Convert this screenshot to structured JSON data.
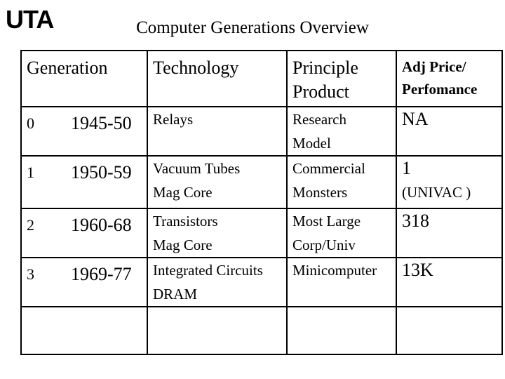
{
  "logo": "UTA",
  "title": "Computer Generations Overview",
  "headers": {
    "generation": "Generation",
    "technology": "Technology",
    "product_line1": "Principle",
    "product_line2": "Product",
    "price_line1": "Adj Price/",
    "price_line2": "Perfomance"
  },
  "rows": [
    {
      "gen": "0",
      "years": "1945-50",
      "tech1": "Relays",
      "tech2": "",
      "prod1": "Research",
      "prod2": "Model",
      "price1": "NA",
      "price2": ""
    },
    {
      "gen": "1",
      "years": "1950-59",
      "tech1": "Vacuum Tubes",
      "tech2": "Mag Core",
      "prod1": "Commercial",
      "prod2": "Monsters",
      "price1": "1",
      "price2": "(UNIVAC )"
    },
    {
      "gen": "2",
      "years": "1960-68",
      "tech1": "Transistors",
      "tech2": "Mag Core",
      "prod1": "Most Large",
      "prod2": "Corp/Univ",
      "price1": "318",
      "price2": ""
    },
    {
      "gen": "3",
      "years": "1969-77",
      "tech1": "Integrated Circuits",
      "tech2": "DRAM",
      "prod1": "Minicomputer",
      "prod2": "",
      "price1": "13K",
      "price2": ""
    }
  ]
}
